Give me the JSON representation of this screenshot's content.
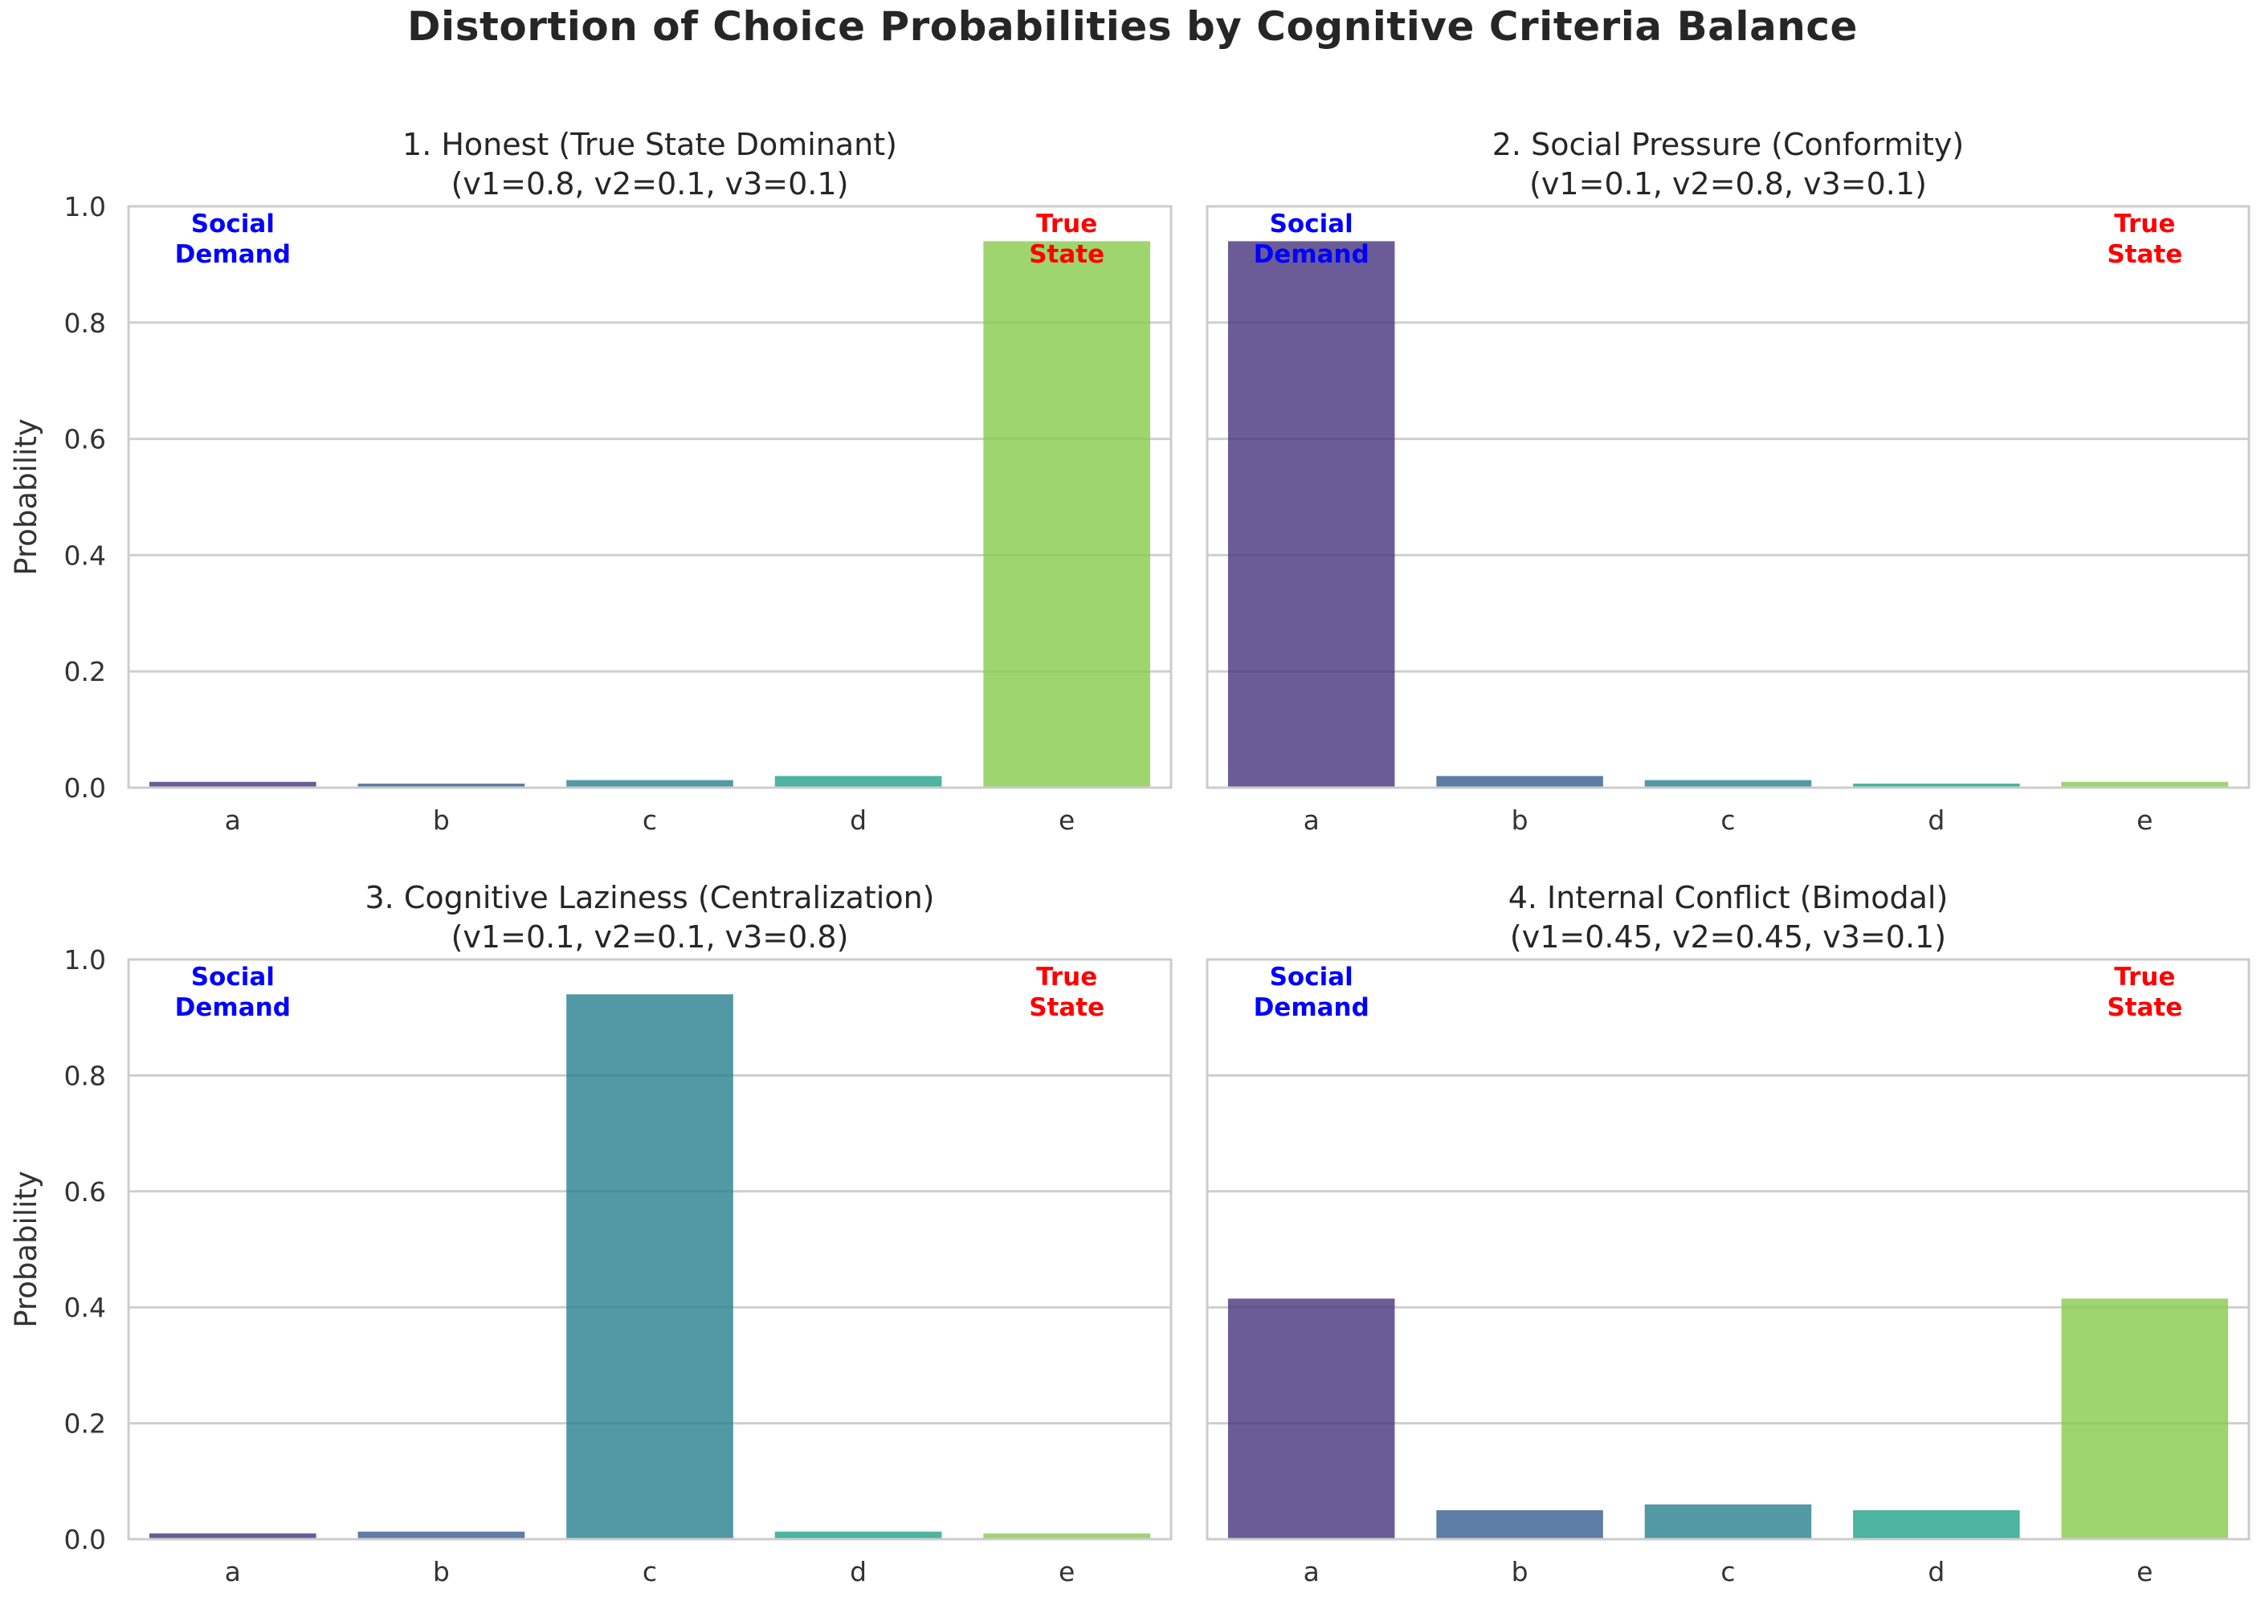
{
  "figure_title": "Distortion of Choice Probabilities by Cognitive Criteria Balance",
  "colors": {
    "a": "#46337e",
    "b": "#365c8d",
    "c": "#277f8e",
    "d": "#1fa187",
    "e": "#86ca4a",
    "social_demand": "#0000ff",
    "true_state": "#ff0000"
  },
  "chart_data": [
    {
      "type": "bar",
      "title": "1. Honest (True State Dominant)",
      "subtitle": "(v1=0.8, v2=0.1, v3=0.1)",
      "categories": [
        "a",
        "b",
        "c",
        "d",
        "e"
      ],
      "values": [
        0.01,
        0.007,
        0.013,
        0.02,
        0.94
      ],
      "ylabel": "Probability",
      "ylim": [
        0,
        1.0
      ],
      "yticks": [
        "0.0",
        "0.2",
        "0.4",
        "0.6",
        "0.8",
        "1.0"
      ],
      "grid": true,
      "annotations": [
        {
          "category": "a",
          "lines": [
            "Social",
            "Demand"
          ],
          "color": "#0000ff"
        },
        {
          "category": "e",
          "lines": [
            "True",
            "State"
          ],
          "color": "#ff0000"
        }
      ]
    },
    {
      "type": "bar",
      "title": "2. Social Pressure (Conformity)",
      "subtitle": "(v1=0.1, v2=0.8, v3=0.1)",
      "categories": [
        "a",
        "b",
        "c",
        "d",
        "e"
      ],
      "values": [
        0.94,
        0.02,
        0.013,
        0.007,
        0.01
      ],
      "ylabel": "",
      "ylim": [
        0,
        1.0
      ],
      "yticks": [],
      "grid": true,
      "annotations": [
        {
          "category": "a",
          "lines": [
            "Social",
            "Demand"
          ],
          "color": "#0000ff"
        },
        {
          "category": "e",
          "lines": [
            "True",
            "State"
          ],
          "color": "#ff0000"
        }
      ]
    },
    {
      "type": "bar",
      "title": "3. Cognitive Laziness (Centralization)",
      "subtitle": "(v1=0.1, v2=0.1, v3=0.8)",
      "categories": [
        "a",
        "b",
        "c",
        "d",
        "e"
      ],
      "values": [
        0.01,
        0.013,
        0.94,
        0.013,
        0.01
      ],
      "ylabel": "Probability",
      "ylim": [
        0,
        1.0
      ],
      "yticks": [
        "0.0",
        "0.2",
        "0.4",
        "0.6",
        "0.8",
        "1.0"
      ],
      "grid": true,
      "annotations": [
        {
          "category": "a",
          "lines": [
            "Social",
            "Demand"
          ],
          "color": "#0000ff"
        },
        {
          "category": "e",
          "lines": [
            "True",
            "State"
          ],
          "color": "#ff0000"
        }
      ]
    },
    {
      "type": "bar",
      "title": "4. Internal Conflict (Bimodal)",
      "subtitle": "(v1=0.45, v2=0.45, v3=0.1)",
      "categories": [
        "a",
        "b",
        "c",
        "d",
        "e"
      ],
      "values": [
        0.415,
        0.05,
        0.06,
        0.05,
        0.415
      ],
      "ylabel": "",
      "ylim": [
        0,
        1.0
      ],
      "yticks": [],
      "grid": true,
      "annotations": [
        {
          "category": "a",
          "lines": [
            "Social",
            "Demand"
          ],
          "color": "#0000ff"
        },
        {
          "category": "e",
          "lines": [
            "True",
            "State"
          ],
          "color": "#ff0000"
        }
      ]
    }
  ]
}
